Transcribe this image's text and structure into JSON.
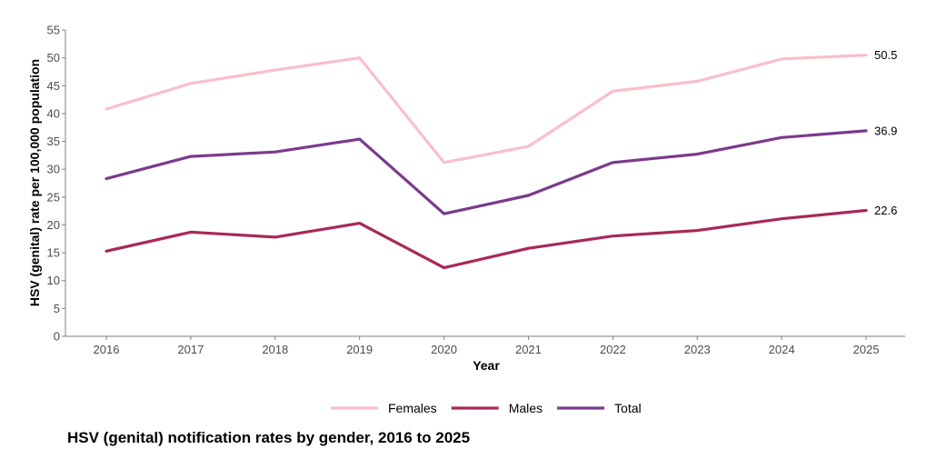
{
  "caption": "HSV (genital) notification rates by gender, 2016 to 2025",
  "chart_data": {
    "type": "line",
    "x": [
      2016,
      2017,
      2018,
      2019,
      2020,
      2021,
      2022,
      2023,
      2024,
      2025
    ],
    "x_tick_labels": [
      "2016",
      "2017",
      "2018",
      "2019",
      "2020",
      "2021",
      "2022",
      "2023",
      "2024",
      "2025"
    ],
    "xlabel": "Year",
    "ylabel": "HSV (genital) rate per 100,000 population",
    "ylim": [
      0,
      55
    ],
    "y_ticks": [
      0,
      5,
      10,
      15,
      20,
      25,
      30,
      35,
      40,
      45,
      50,
      55
    ],
    "y_tick_labels": [
      "0",
      "5",
      "10",
      "15",
      "20",
      "25",
      "30",
      "35",
      "40",
      "45",
      "50",
      "55"
    ],
    "grid": false,
    "legend_position": "bottom",
    "series": [
      {
        "name": "Females",
        "color": "#f9bfca",
        "values": [
          40.8,
          45.4,
          47.8,
          50.0,
          31.2,
          34.1,
          44.0,
          45.8,
          49.8,
          50.5
        ],
        "end_label": "50.5"
      },
      {
        "name": "Males",
        "color": "#a8285a",
        "values": [
          15.3,
          18.7,
          17.8,
          20.3,
          12.3,
          15.8,
          18.0,
          19.0,
          21.1,
          22.6
        ],
        "end_label": "22.6"
      },
      {
        "name": "Total",
        "color": "#7b3a8e",
        "values": [
          28.3,
          32.3,
          33.1,
          35.4,
          22.0,
          25.3,
          31.2,
          32.7,
          35.7,
          36.9
        ],
        "end_label": "36.9"
      }
    ]
  }
}
